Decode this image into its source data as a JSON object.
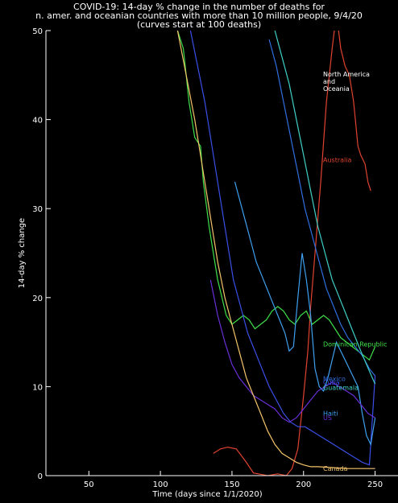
{
  "title_lines": [
    "COVID-19: 14-day % change in the number of deaths for",
    "n. amer. and oceanian countries with more than 10 million people, 9/4/20",
    "(curves start at 100 deaths)"
  ],
  "region_note": [
    "North America",
    "and",
    "Oceania"
  ],
  "chart_data": {
    "type": "line",
    "title": "COVID-19: 14-day % change in the number of deaths for n. amer. and oceanian countries with more than 10 million people, 9/4/20",
    "subtitle": "(curves start at 100 deaths)",
    "xlabel": "Time (days since 1/1/2020)",
    "ylabel": "14-day % change",
    "xlim": [
      20,
      266
    ],
    "ylim": [
      0,
      50
    ],
    "xticks": [
      50,
      100,
      150,
      200,
      250
    ],
    "yticks": [
      0,
      10,
      20,
      30,
      40,
      50
    ],
    "grid": false,
    "background": "#000000",
    "axis_color": "#ffffff",
    "series": [
      {
        "name": "Australia",
        "color": "#e0432f",
        "x": [
          137,
          142,
          147,
          153,
          160,
          165,
          175,
          182,
          188,
          192,
          196,
          200,
          203,
          205,
          208,
          212,
          216,
          220,
          223,
          226,
          229,
          232,
          235,
          238,
          240,
          243,
          245,
          247
        ],
        "y": [
          2.5,
          3.0,
          3.2,
          3.0,
          1.5,
          0.3,
          0.0,
          0.2,
          0.0,
          0.8,
          3.0,
          9.0,
          14.0,
          19.0,
          25.0,
          33.0,
          42.0,
          48.0,
          52.0,
          48.0,
          46.0,
          45.0,
          42.0,
          37.0,
          36.0,
          35.0,
          33.0,
          32.0
        ],
        "label_y": 35.5
      },
      {
        "name": "Dominican Republic",
        "color": "#3fe04a",
        "x": [
          112,
          116,
          118,
          120,
          124,
          128,
          130,
          134,
          137,
          140,
          143,
          146,
          150,
          154,
          158,
          162,
          166,
          170,
          174,
          178,
          182,
          186,
          190,
          194,
          198,
          202,
          206,
          210,
          214,
          218,
          222,
          226,
          230,
          234,
          238,
          242,
          246,
          250
        ],
        "y": [
          50.0,
          48.0,
          45.0,
          42.0,
          38.0,
          37.0,
          33.0,
          28.0,
          25.0,
          22.0,
          20.0,
          18.0,
          17.0,
          17.5,
          18.0,
          17.5,
          16.5,
          17.0,
          17.5,
          18.5,
          19.0,
          18.5,
          17.5,
          17.0,
          18.0,
          18.5,
          17.0,
          17.5,
          18.0,
          17.5,
          16.5,
          15.5,
          15.0,
          14.5,
          14.0,
          13.5,
          13.0,
          14.5
        ],
        "label_y": 14.8
      },
      {
        "name": "Cuba",
        "color": "#3a4fe8",
        "x": [
          121,
          126,
          131,
          136,
          141,
          146,
          151,
          156,
          161,
          166,
          171,
          176,
          181,
          186,
          191,
          196,
          201,
          206,
          211,
          216,
          221,
          226,
          231,
          236,
          241,
          246,
          250
        ],
        "y": [
          50.0,
          46.0,
          42.0,
          37.0,
          32.0,
          27.0,
          22.0,
          19.0,
          16.0,
          14.0,
          12.0,
          10.0,
          8.5,
          7.0,
          6.0,
          5.5,
          5.5,
          5.0,
          4.5,
          4.0,
          3.5,
          3.0,
          2.5,
          2.0,
          1.5,
          1.2,
          11.2
        ],
        "label_y": 10.5
      },
      {
        "name": "Mexico",
        "color": "#2f6fe0",
        "x": [
          176,
          181,
          186,
          191,
          196,
          201,
          206,
          211,
          216,
          221,
          226,
          231,
          236,
          241,
          246,
          250
        ],
        "y": [
          49.0,
          46.0,
          42.0,
          38.0,
          34.0,
          30.0,
          27.0,
          24.0,
          21.0,
          19.0,
          17.0,
          15.5,
          14.5,
          13.5,
          12.0,
          11.2
        ],
        "label_y": 10.9
      },
      {
        "name": "Guatemala",
        "color": "#3fd0c8",
        "x": [
          180,
          185,
          190,
          195,
          200,
          205,
          210,
          215,
          220,
          225,
          230,
          235,
          240,
          244,
          248,
          250
        ],
        "y": [
          50.0,
          47.0,
          44.0,
          40.0,
          36.0,
          32.0,
          28.0,
          25.0,
          22.0,
          20.0,
          18.0,
          16.0,
          14.0,
          12.5,
          11.0,
          10.3
        ],
        "label_y": 9.9
      },
      {
        "name": "Haiti",
        "color": "#3ea0f0",
        "x": [
          152,
          157,
          162,
          167,
          172,
          177,
          182,
          187,
          190,
          193,
          196,
          199,
          202,
          205,
          208,
          211,
          214,
          217,
          220,
          223,
          226,
          229,
          232,
          235,
          238,
          241,
          244,
          247,
          250
        ],
        "y": [
          33.0,
          30.0,
          27.0,
          24.0,
          22.0,
          20.0,
          18.0,
          16.0,
          14.0,
          14.5,
          20.0,
          25.0,
          22.0,
          18.0,
          12.0,
          10.0,
          9.5,
          11.0,
          13.0,
          15.0,
          14.0,
          13.0,
          12.0,
          11.0,
          10.0,
          7.0,
          4.5,
          3.5,
          6.5
        ],
        "label_y": 7.0
      },
      {
        "name": "US",
        "color": "#6a2fd8",
        "x": [
          135,
          140,
          145,
          150,
          155,
          160,
          165,
          170,
          175,
          180,
          185,
          190,
          195,
          200,
          205,
          210,
          215,
          220,
          225,
          230,
          235,
          240,
          245,
          250
        ],
        "y": [
          22.0,
          18.0,
          15.0,
          12.5,
          11.0,
          10.0,
          9.0,
          8.5,
          8.0,
          7.5,
          6.5,
          6.0,
          6.5,
          7.5,
          8.5,
          9.5,
          10.0,
          10.5,
          10.0,
          9.5,
          9.0,
          8.0,
          7.0,
          6.5
        ],
        "label_y": 6.5
      },
      {
        "name": "Canada",
        "color": "#f4c46a",
        "x": [
          112,
          118,
          124,
          128,
          132,
          136,
          140,
          145,
          150,
          155,
          160,
          165,
          170,
          175,
          180,
          185,
          190,
          195,
          200,
          205,
          210,
          220,
          230,
          240,
          250
        ],
        "y": [
          50.0,
          45.0,
          40.0,
          36.0,
          32.0,
          28.0,
          24.0,
          20.0,
          17.0,
          14.0,
          11.0,
          9.0,
          7.0,
          5.0,
          3.5,
          2.5,
          2.0,
          1.5,
          1.2,
          1.0,
          1.0,
          0.9,
          0.8,
          0.8,
          0.8
        ],
        "label_y": 0.8
      }
    ]
  }
}
